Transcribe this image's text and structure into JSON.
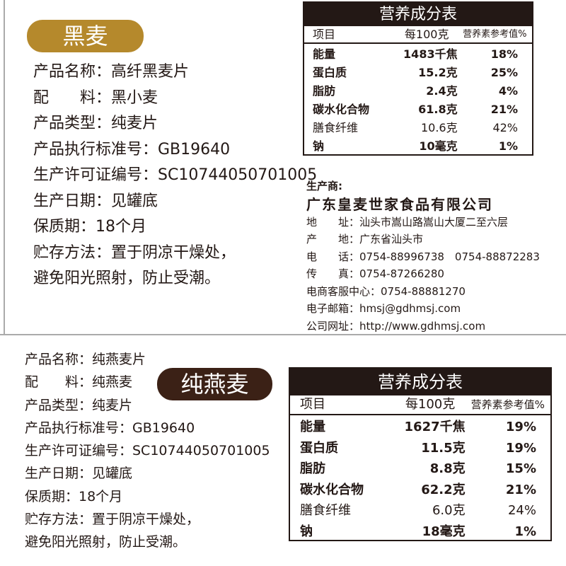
{
  "colors": {
    "rye_badge": "#b5892c",
    "oat_badge": "#3b2116",
    "table_header": "#231815"
  },
  "rye": {
    "badge": "黑麦",
    "info": [
      "产品名称：高纤黑麦片",
      "配　　料：黑小麦",
      "产品类型：纯麦片",
      "产品执行标准号：GB19640",
      "生产许可证编号：SC10744050701005",
      "生产日期：见罐底",
      "保质期：18个月",
      "贮存方法：置于阴凉干燥处，",
      "避免阳光照射，防止受潮。"
    ],
    "table": {
      "title": "营养成分表",
      "headers": [
        "项目",
        "每100克",
        "营养素参考值%"
      ],
      "rows": [
        [
          "能量",
          "1483千焦",
          "18%"
        ],
        [
          "蛋白质",
          "15.2克",
          "25%"
        ],
        [
          "脂肪",
          "2.4克",
          "4%"
        ],
        [
          "碳水化合物",
          "61.8克",
          "21%"
        ],
        [
          "膳食纤维",
          "10.6克",
          "42%"
        ],
        [
          "钠",
          "10毫克",
          "1%"
        ]
      ]
    }
  },
  "manufacturer": {
    "label": "生产商:",
    "name": "广东皇麦世家食品有限公司",
    "lines": [
      "地　　址：汕头市嵩山路嵩山大厦二至六层",
      "产　　地：广东省汕头市",
      "电　　话：0754-88996738　0754-88872283",
      "传　　真：0754-87266280",
      "电商客服中心：0754-88881270",
      "电子邮箱：hmsj@gdhmsj.com",
      "公司网址：http://www.gdhmsj.com"
    ]
  },
  "oat": {
    "badge": "纯燕麦",
    "info": [
      "产品名称：纯燕麦片",
      "配　　料：纯燕麦",
      "产品类型：纯麦片",
      "产品执行标准号：GB19640",
      "生产许可证编号：SC10744050701005",
      "生产日期：见罐底",
      "保质期：18个月",
      "贮存方法：置于阴凉干燥处，",
      "避免阳光照射，防止受潮。"
    ],
    "table": {
      "title": "营养成分表",
      "headers": [
        "项目",
        "每100克",
        "营养素参考值%"
      ],
      "rows": [
        [
          "能量",
          "1627千焦",
          "19%"
        ],
        [
          "蛋白质",
          "11.5克",
          "19%"
        ],
        [
          "脂肪",
          "8.8克",
          "15%"
        ],
        [
          "碳水化合物",
          "62.2克",
          "21%"
        ],
        [
          "膳食纤维",
          "6.0克",
          "24%"
        ],
        [
          "钠",
          "18毫克",
          "1%"
        ]
      ]
    }
  }
}
